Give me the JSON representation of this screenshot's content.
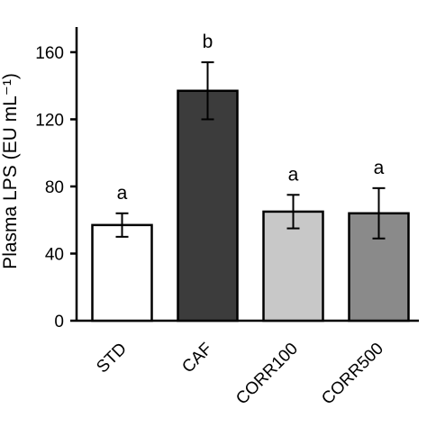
{
  "chart_data": {
    "type": "bar",
    "categories": [
      "STD",
      "CAF",
      "CORR100",
      "CORR500"
    ],
    "values": [
      57,
      137,
      65,
      64
    ],
    "errors": [
      7,
      17,
      10,
      15
    ],
    "significance": [
      "a",
      "b",
      "a",
      "a"
    ],
    "colors": [
      "#ffffff",
      "#3c3c3c",
      "#c8c8c8",
      "#8a8a8a"
    ],
    "ylabel": "Plasma LPS (EU mL⁻¹)",
    "ylim": [
      0,
      175
    ],
    "yticks": [
      0,
      40,
      80,
      120,
      160
    ],
    "ytick_labels": [
      "0",
      "40",
      "80",
      "120",
      "160"
    ],
    "grid": false
  }
}
